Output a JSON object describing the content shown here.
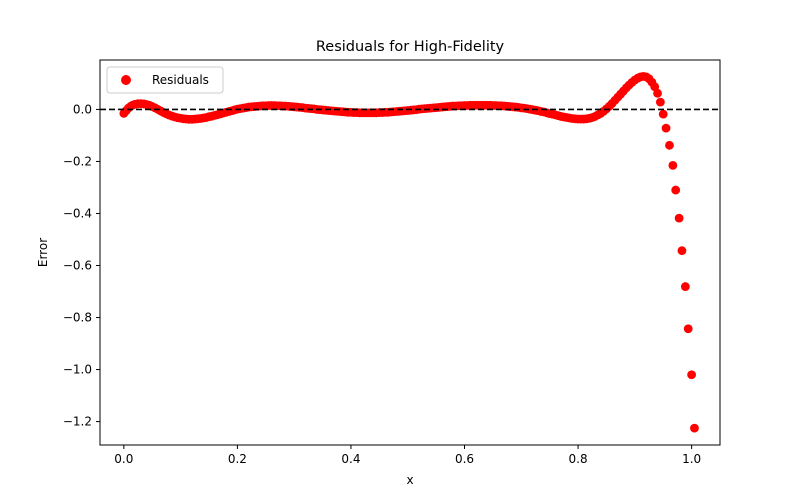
{
  "chart_data": {
    "type": "scatter",
    "title": "Residuals for High-Fidelity",
    "xlabel": "x",
    "ylabel": "Error",
    "xlim": [
      -0.042,
      1.05
    ],
    "ylim": [
      -1.29,
      0.19
    ],
    "xticks": [
      0.0,
      0.2,
      0.4,
      0.6,
      0.8,
      1.0
    ],
    "xtick_labels": [
      "0.0",
      "0.2",
      "0.4",
      "0.6",
      "0.8",
      "1.0"
    ],
    "yticks": [
      0.0,
      -0.2,
      -0.4,
      -0.6,
      -0.8,
      -1.0,
      -1.2
    ],
    "ytick_labels": [
      "0.0",
      "−0.2",
      "−0.4",
      "−0.6",
      "−0.8",
      "−1.0",
      "−1.2"
    ],
    "reference_line": {
      "y": 0,
      "style": "dashed",
      "color": "#000000"
    },
    "legend": {
      "position": "top-left",
      "entries": [
        "Residuals"
      ]
    },
    "grid": false,
    "series": [
      {
        "name": "Residuals",
        "color": "#ff0000",
        "marker": "circle",
        "points": [
          [
            0.0,
            -0.015
          ],
          [
            0.004,
            -0.005
          ],
          [
            0.008,
            0.005
          ],
          [
            0.012,
            0.012
          ],
          [
            0.016,
            0.017
          ],
          [
            0.02,
            0.02
          ],
          [
            0.025,
            0.022
          ],
          [
            0.03,
            0.022
          ],
          [
            0.035,
            0.021
          ],
          [
            0.04,
            0.019
          ],
          [
            0.045,
            0.016
          ],
          [
            0.05,
            0.011
          ],
          [
            0.055,
            0.006
          ],
          [
            0.06,
            0.0
          ],
          [
            0.065,
            -0.006
          ],
          [
            0.07,
            -0.012
          ],
          [
            0.075,
            -0.017
          ],
          [
            0.08,
            -0.022
          ],
          [
            0.085,
            -0.026
          ],
          [
            0.09,
            -0.029
          ],
          [
            0.095,
            -0.032
          ],
          [
            0.1,
            -0.034
          ],
          [
            0.105,
            -0.036
          ],
          [
            0.11,
            -0.037
          ],
          [
            0.115,
            -0.038
          ],
          [
            0.12,
            -0.038
          ],
          [
            0.125,
            -0.037
          ],
          [
            0.13,
            -0.036
          ],
          [
            0.135,
            -0.035
          ],
          [
            0.14,
            -0.033
          ],
          [
            0.145,
            -0.031
          ],
          [
            0.15,
            -0.028
          ],
          [
            0.155,
            -0.026
          ],
          [
            0.16,
            -0.023
          ],
          [
            0.165,
            -0.02
          ],
          [
            0.17,
            -0.017
          ],
          [
            0.175,
            -0.014
          ],
          [
            0.18,
            -0.011
          ],
          [
            0.185,
            -0.008
          ],
          [
            0.19,
            -0.005
          ],
          [
            0.195,
            -0.002
          ],
          [
            0.2,
            0.001
          ],
          [
            0.205,
            0.003
          ],
          [
            0.21,
            0.005
          ],
          [
            0.215,
            0.007
          ],
          [
            0.22,
            0.009
          ],
          [
            0.225,
            0.01
          ],
          [
            0.23,
            0.011
          ],
          [
            0.235,
            0.012
          ],
          [
            0.24,
            0.013
          ],
          [
            0.245,
            0.014
          ],
          [
            0.25,
            0.014
          ],
          [
            0.255,
            0.015
          ],
          [
            0.26,
            0.015
          ],
          [
            0.265,
            0.015
          ],
          [
            0.27,
            0.014
          ],
          [
            0.275,
            0.014
          ],
          [
            0.28,
            0.013
          ],
          [
            0.285,
            0.013
          ],
          [
            0.29,
            0.012
          ],
          [
            0.295,
            0.011
          ],
          [
            0.3,
            0.01
          ],
          [
            0.305,
            0.009
          ],
          [
            0.31,
            0.008
          ],
          [
            0.315,
            0.007
          ],
          [
            0.32,
            0.005
          ],
          [
            0.325,
            0.004
          ],
          [
            0.33,
            0.003
          ],
          [
            0.335,
            0.002
          ],
          [
            0.34,
            0.0
          ],
          [
            0.345,
            -0.001
          ],
          [
            0.35,
            -0.002
          ],
          [
            0.355,
            -0.003
          ],
          [
            0.36,
            -0.004
          ],
          [
            0.365,
            -0.005
          ],
          [
            0.37,
            -0.006
          ],
          [
            0.375,
            -0.007
          ],
          [
            0.38,
            -0.008
          ],
          [
            0.385,
            -0.009
          ],
          [
            0.39,
            -0.01
          ],
          [
            0.395,
            -0.011
          ],
          [
            0.4,
            -0.011
          ],
          [
            0.405,
            -0.012
          ],
          [
            0.41,
            -0.012
          ],
          [
            0.415,
            -0.013
          ],
          [
            0.42,
            -0.013
          ],
          [
            0.425,
            -0.013
          ],
          [
            0.43,
            -0.013
          ],
          [
            0.435,
            -0.013
          ],
          [
            0.44,
            -0.013
          ],
          [
            0.445,
            -0.013
          ],
          [
            0.45,
            -0.012
          ],
          [
            0.455,
            -0.012
          ],
          [
            0.46,
            -0.011
          ],
          [
            0.465,
            -0.011
          ],
          [
            0.47,
            -0.01
          ],
          [
            0.475,
            -0.009
          ],
          [
            0.48,
            -0.008
          ],
          [
            0.485,
            -0.007
          ],
          [
            0.49,
            -0.006
          ],
          [
            0.495,
            -0.005
          ],
          [
            0.5,
            -0.004
          ],
          [
            0.505,
            -0.003
          ],
          [
            0.51,
            -0.002
          ],
          [
            0.515,
            -0.001
          ],
          [
            0.52,
            0.001
          ],
          [
            0.525,
            0.002
          ],
          [
            0.53,
            0.003
          ],
          [
            0.535,
            0.004
          ],
          [
            0.54,
            0.005
          ],
          [
            0.545,
            0.006
          ],
          [
            0.55,
            0.007
          ],
          [
            0.555,
            0.008
          ],
          [
            0.56,
            0.009
          ],
          [
            0.565,
            0.01
          ],
          [
            0.57,
            0.011
          ],
          [
            0.575,
            0.012
          ],
          [
            0.58,
            0.013
          ],
          [
            0.585,
            0.013
          ],
          [
            0.59,
            0.014
          ],
          [
            0.595,
            0.014
          ],
          [
            0.6,
            0.015
          ],
          [
            0.605,
            0.015
          ],
          [
            0.61,
            0.016
          ],
          [
            0.615,
            0.016
          ],
          [
            0.62,
            0.016
          ],
          [
            0.625,
            0.016
          ],
          [
            0.63,
            0.016
          ],
          [
            0.635,
            0.016
          ],
          [
            0.64,
            0.016
          ],
          [
            0.645,
            0.016
          ],
          [
            0.65,
            0.015
          ],
          [
            0.655,
            0.015
          ],
          [
            0.66,
            0.014
          ],
          [
            0.665,
            0.014
          ],
          [
            0.67,
            0.013
          ],
          [
            0.675,
            0.012
          ],
          [
            0.68,
            0.011
          ],
          [
            0.685,
            0.01
          ],
          [
            0.69,
            0.009
          ],
          [
            0.695,
            0.008
          ],
          [
            0.7,
            0.006
          ],
          [
            0.705,
            0.005
          ],
          [
            0.71,
            0.003
          ],
          [
            0.715,
            0.001
          ],
          [
            0.72,
            -0.001
          ],
          [
            0.725,
            -0.003
          ],
          [
            0.73,
            -0.005
          ],
          [
            0.735,
            -0.008
          ],
          [
            0.74,
            -0.01
          ],
          [
            0.745,
            -0.013
          ],
          [
            0.75,
            -0.016
          ],
          [
            0.755,
            -0.018
          ],
          [
            0.76,
            -0.021
          ],
          [
            0.765,
            -0.024
          ],
          [
            0.77,
            -0.027
          ],
          [
            0.775,
            -0.029
          ],
          [
            0.78,
            -0.031
          ],
          [
            0.785,
            -0.033
          ],
          [
            0.79,
            -0.035
          ],
          [
            0.795,
            -0.036
          ],
          [
            0.8,
            -0.037
          ],
          [
            0.805,
            -0.037
          ],
          [
            0.81,
            -0.037
          ],
          [
            0.815,
            -0.036
          ],
          [
            0.82,
            -0.034
          ],
          [
            0.825,
            -0.031
          ],
          [
            0.83,
            -0.027
          ],
          [
            0.835,
            -0.021
          ],
          [
            0.84,
            -0.015
          ],
          [
            0.845,
            -0.007
          ],
          [
            0.85,
            0.002
          ],
          [
            0.855,
            0.012
          ],
          [
            0.86,
            0.023
          ],
          [
            0.865,
            0.035
          ],
          [
            0.87,
            0.047
          ],
          [
            0.875,
            0.059
          ],
          [
            0.88,
            0.071
          ],
          [
            0.885,
            0.083
          ],
          [
            0.89,
            0.094
          ],
          [
            0.895,
            0.104
          ],
          [
            0.9,
            0.113
          ],
          [
            0.905,
            0.12
          ],
          [
            0.91,
            0.125
          ],
          [
            0.915,
            0.127
          ],
          [
            0.92,
            0.125
          ],
          [
            0.925,
            0.118
          ],
          [
            0.93,
            0.105
          ],
          [
            0.935,
            0.087
          ],
          [
            0.94,
            0.062
          ],
          [
            0.945,
            0.028
          ],
          [
            0.95,
            -0.018
          ],
          [
            0.955,
            -0.072
          ],
          [
            0.961,
            -0.138
          ],
          [
            0.967,
            -0.215
          ],
          [
            0.972,
            -0.31
          ],
          [
            0.978,
            -0.418
          ],
          [
            0.983,
            -0.543
          ],
          [
            0.989,
            -0.681
          ],
          [
            0.994,
            -0.843
          ],
          [
            1.0,
            -1.02
          ],
          [
            1.005,
            -1.225
          ]
        ]
      }
    ]
  }
}
